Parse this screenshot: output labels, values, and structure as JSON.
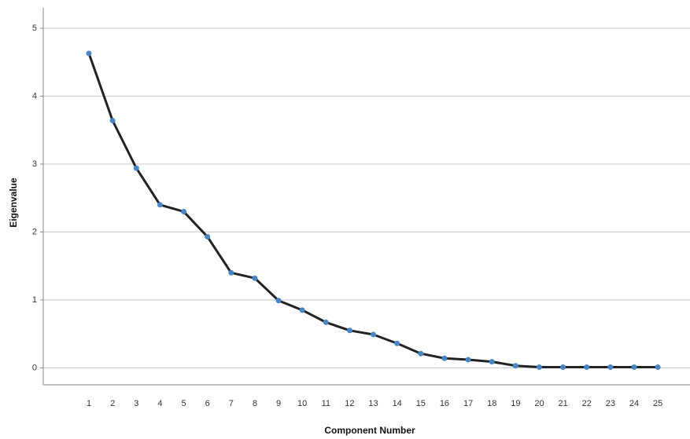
{
  "chart_data": {
    "type": "line",
    "x_label": "Component Number",
    "y_label": "Eigenvalue",
    "categories": [
      "1",
      "2",
      "3",
      "4",
      "5",
      "6",
      "7",
      "8",
      "9",
      "10",
      "11",
      "12",
      "13",
      "14",
      "15",
      "16",
      "17",
      "18",
      "19",
      "20",
      "21",
      "22",
      "23",
      "24",
      "25"
    ],
    "series": [
      {
        "name": "Eigenvalue",
        "color": "#222222",
        "marker_color": "#4a86c5",
        "values": [
          4.63,
          3.64,
          2.94,
          2.4,
          2.3,
          1.93,
          1.4,
          1.32,
          0.99,
          0.85,
          0.67,
          0.55,
          0.49,
          0.36,
          0.21,
          0.14,
          0.12,
          0.09,
          0.03,
          0.01,
          0.01,
          0.01,
          0.01,
          0.01,
          0.01
        ]
      }
    ],
    "ylim": [
      -0.25,
      5.3
    ],
    "yticks": [
      0,
      1,
      2,
      3,
      4,
      5
    ],
    "grid": true
  }
}
